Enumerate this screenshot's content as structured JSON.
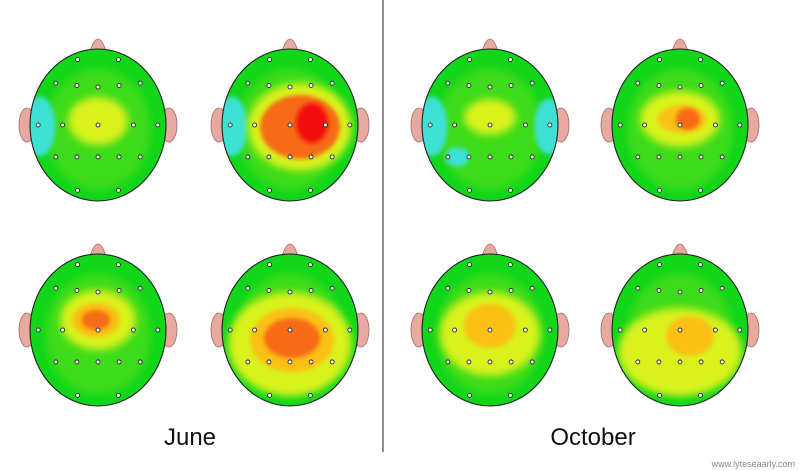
{
  "panels": [
    {
      "label": "June",
      "maps": [
        {
          "name": "june-top-left",
          "blobs": [
            {
              "dx": 0,
              "dy": -4,
              "rx": 30,
              "ry": 24,
              "level": "yellow"
            }
          ],
          "cool": [
            "left"
          ]
        },
        {
          "name": "june-top-right",
          "blobs": [
            {
              "dx": 10,
              "dy": 2,
              "rx": 52,
              "ry": 44,
              "level": "yellow"
            },
            {
              "dx": 10,
              "dy": 2,
              "rx": 40,
              "ry": 32,
              "level": "orange"
            },
            {
              "dx": 22,
              "dy": -2,
              "rx": 16,
              "ry": 20,
              "level": "red"
            }
          ],
          "cool": [
            "left"
          ]
        },
        {
          "name": "june-bottom-left",
          "blobs": [
            {
              "dx": 0,
              "dy": -10,
              "rx": 38,
              "ry": 30,
              "level": "yellow"
            },
            {
              "dx": -2,
              "dy": -10,
              "rx": 24,
              "ry": 17,
              "level": "light-orange"
            },
            {
              "dx": -2,
              "dy": -10,
              "rx": 14,
              "ry": 10,
              "level": "orange"
            }
          ],
          "cool": []
        },
        {
          "name": "june-bottom-right",
          "blobs": [
            {
              "dx": 0,
              "dy": 14,
              "rx": 62,
              "ry": 52,
              "level": "yellow"
            },
            {
              "dx": 2,
              "dy": 10,
              "rx": 42,
              "ry": 32,
              "level": "light-orange"
            },
            {
              "dx": 2,
              "dy": 8,
              "rx": 28,
              "ry": 20,
              "level": "orange"
            }
          ],
          "cool": []
        }
      ]
    },
    {
      "label": "October",
      "maps": [
        {
          "name": "october-top-left",
          "blobs": [
            {
              "dx": 0,
              "dy": -8,
              "rx": 26,
              "ry": 18,
              "level": "yellow"
            }
          ],
          "cool": [
            "left",
            "right",
            "lower-left"
          ]
        },
        {
          "name": "october-top-right",
          "blobs": [
            {
              "dx": 0,
              "dy": -6,
              "rx": 40,
              "ry": 28,
              "level": "yellow"
            },
            {
              "dx": 2,
              "dy": -6,
              "rx": 24,
              "ry": 14,
              "level": "light-orange"
            },
            {
              "dx": 8,
              "dy": -6,
              "rx": 12,
              "ry": 11,
              "level": "orange"
            }
          ],
          "cool": []
        },
        {
          "name": "october-bottom-left",
          "blobs": [
            {
              "dx": 0,
              "dy": 4,
              "rx": 50,
              "ry": 42,
              "level": "yellow"
            },
            {
              "dx": 0,
              "dy": -4,
              "rx": 26,
              "ry": 22,
              "level": "light-orange"
            }
          ],
          "cool": []
        },
        {
          "name": "october-bottom-right",
          "blobs": [
            {
              "dx": 0,
              "dy": 22,
              "rx": 62,
              "ry": 44,
              "level": "yellow"
            },
            {
              "dx": 10,
              "dy": 6,
              "rx": 24,
              "ry": 20,
              "level": "light-orange"
            }
          ],
          "cool": []
        }
      ]
    }
  ],
  "colors": {
    "green": "#11d61a",
    "light-green": "#8fe61e",
    "yellow": "#d9f21a",
    "light-orange": "#fbbf19",
    "orange": "#f76b12",
    "red": "#f20f0f",
    "cool": "#3de0d2",
    "ear": "#e8a9a0",
    "outline": "#222222"
  },
  "watermark": "www.lyteseaarly.com"
}
